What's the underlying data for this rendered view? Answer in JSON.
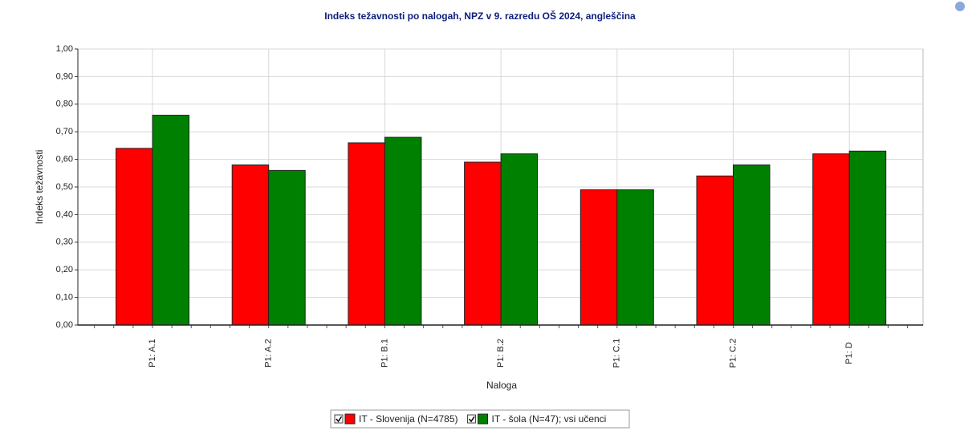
{
  "chart_data": {
    "type": "bar",
    "title": "Indeks težavnosti po nalogah, NPZ v 9. razredu OŠ 2024, angleščina",
    "x_label": "Naloga",
    "y_label": "Indeks težavnosti",
    "categories": [
      "P1: A.1",
      "P1: A.2",
      "P1: B.1",
      "P1: B.2",
      "P1: C.1",
      "P1: C.2",
      "P1: D"
    ],
    "series": [
      {
        "name": "IT - Slovenija (N=4785)",
        "color": "#ff0000",
        "values": [
          0.64,
          0.58,
          0.66,
          0.59,
          0.49,
          0.54,
          0.62
        ]
      },
      {
        "name": "IT - šola (N=47); vsi učenci",
        "color": "#008000",
        "values": [
          0.76,
          0.56,
          0.68,
          0.62,
          0.49,
          0.58,
          0.63
        ]
      }
    ],
    "ylim": [
      0,
      1
    ],
    "yticks": [
      {
        "value": 0,
        "label": "0,00"
      },
      {
        "value": 0.1,
        "label": "0,10"
      },
      {
        "value": 0.2,
        "label": "0,20"
      },
      {
        "value": 0.3,
        "label": "0,30"
      },
      {
        "value": 0.4,
        "label": "0,40"
      },
      {
        "value": 0.5,
        "label": "0,50"
      },
      {
        "value": 0.6,
        "label": "0,60"
      },
      {
        "value": 0.7,
        "label": "0,70"
      },
      {
        "value": 0.8,
        "label": "0,80"
      },
      {
        "value": 0.9,
        "label": "0,90"
      },
      {
        "value": 1,
        "label": "1,00"
      }
    ],
    "grid": true
  }
}
